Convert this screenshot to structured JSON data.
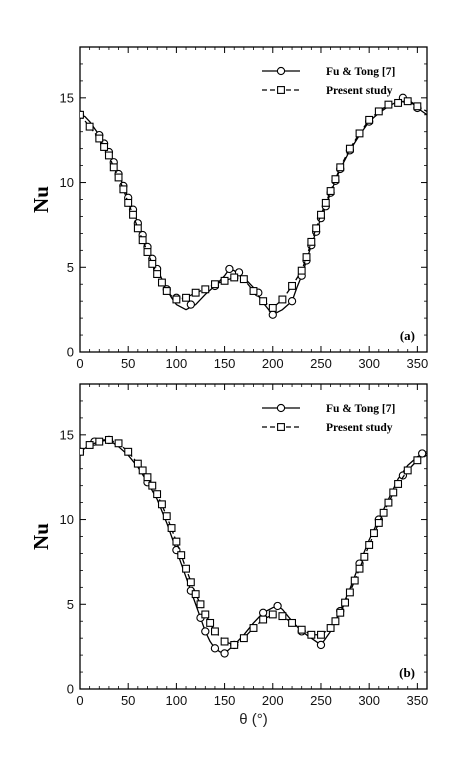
{
  "chart_data": [
    {
      "type": "line",
      "panel_label": "(a)",
      "xlabel": "",
      "ylabel": "Nu",
      "xlim": [
        0,
        360
      ],
      "ylim": [
        0,
        18
      ],
      "xticks": [
        0,
        50,
        100,
        150,
        200,
        250,
        300,
        350
      ],
      "yticks": [
        0,
        5,
        10,
        15
      ],
      "grid": false,
      "legend_position": "top-right",
      "series": [
        {
          "name": "Fu & Tong [7]",
          "style": "solid",
          "marker": "circle",
          "x": [
            0,
            5,
            10,
            15,
            20,
            25,
            30,
            35,
            40,
            45,
            50,
            55,
            60,
            65,
            70,
            75,
            80,
            85,
            90,
            95,
            100,
            110,
            120,
            130,
            140,
            150,
            155,
            160,
            170,
            180,
            190,
            200,
            210,
            220,
            225,
            230,
            235,
            240,
            245,
            250,
            255,
            260,
            265,
            270,
            280,
            290,
            300,
            310,
            320,
            330,
            335,
            340,
            345,
            350,
            355,
            360
          ],
          "y": [
            14.0,
            13.9,
            13.6,
            13.2,
            12.8,
            12.3,
            11.8,
            11.2,
            10.5,
            9.8,
            9.1,
            8.4,
            7.6,
            6.9,
            6.2,
            5.5,
            4.9,
            4.3,
            3.7,
            3.2,
            2.8,
            2.5,
            2.8,
            3.4,
            3.9,
            4.5,
            4.9,
            4.8,
            4.4,
            3.8,
            2.9,
            2.2,
            2.5,
            3.0,
            3.8,
            4.5,
            5.4,
            6.3,
            7.1,
            7.9,
            8.6,
            9.4,
            10.1,
            10.8,
            11.9,
            12.8,
            13.6,
            14.1,
            14.5,
            14.8,
            15.0,
            14.9,
            14.7,
            14.4,
            14.2,
            14.0
          ],
          "marker_x": [
            0,
            20,
            25,
            30,
            35,
            40,
            45,
            50,
            55,
            60,
            65,
            70,
            75,
            80,
            90,
            100,
            115,
            140,
            155,
            165,
            185,
            200,
            220,
            230,
            235,
            240,
            245,
            250,
            255,
            260,
            265,
            270,
            280,
            300,
            335,
            350
          ],
          "marker_y": [
            14.0,
            12.8,
            12.3,
            11.8,
            11.2,
            10.5,
            9.8,
            9.1,
            8.4,
            7.6,
            6.9,
            6.2,
            5.5,
            4.9,
            3.7,
            3.2,
            2.8,
            3.9,
            4.9,
            4.7,
            3.5,
            2.2,
            3.0,
            4.5,
            5.4,
            6.3,
            7.1,
            7.9,
            8.6,
            9.4,
            10.1,
            10.8,
            11.9,
            13.6,
            15.0,
            14.4
          ]
        },
        {
          "name": "Present study",
          "style": "dashed",
          "marker": "square",
          "x": [
            0,
            10,
            20,
            25,
            30,
            35,
            40,
            45,
            50,
            55,
            60,
            65,
            70,
            75,
            80,
            85,
            90,
            95,
            100,
            110,
            120,
            130,
            140,
            150,
            160,
            170,
            180,
            190,
            200,
            210,
            220,
            230,
            235,
            240,
            245,
            250,
            255,
            260,
            265,
            270,
            280,
            290,
            300,
            310,
            320,
            330,
            340,
            350,
            360
          ],
          "y": [
            14.0,
            13.3,
            12.6,
            12.1,
            11.6,
            10.9,
            10.3,
            9.6,
            8.8,
            8.1,
            7.3,
            6.6,
            5.9,
            5.2,
            4.6,
            4.1,
            3.6,
            3.3,
            3.1,
            3.2,
            3.5,
            3.7,
            4.0,
            4.2,
            4.4,
            4.3,
            3.6,
            3.0,
            2.6,
            3.1,
            3.9,
            4.8,
            5.6,
            6.5,
            7.3,
            8.1,
            8.8,
            9.5,
            10.2,
            10.9,
            12.0,
            12.9,
            13.7,
            14.2,
            14.6,
            14.7,
            14.8,
            14.5,
            14.2
          ],
          "marker_x": [
            0,
            10,
            20,
            25,
            30,
            35,
            40,
            45,
            50,
            55,
            60,
            65,
            70,
            75,
            80,
            85,
            90,
            100,
            110,
            120,
            130,
            140,
            150,
            160,
            170,
            180,
            190,
            200,
            210,
            220,
            230,
            235,
            240,
            245,
            250,
            255,
            260,
            265,
            270,
            280,
            290,
            300,
            310,
            320,
            330,
            340,
            350
          ],
          "marker_y": [
            14.0,
            13.3,
            12.6,
            12.1,
            11.6,
            10.9,
            10.3,
            9.6,
            8.8,
            8.1,
            7.3,
            6.6,
            5.9,
            5.2,
            4.6,
            4.1,
            3.6,
            3.1,
            3.2,
            3.5,
            3.7,
            4.0,
            4.2,
            4.4,
            4.3,
            3.6,
            3.0,
            2.6,
            3.1,
            3.9,
            4.8,
            5.6,
            6.5,
            7.3,
            8.1,
            8.8,
            9.5,
            10.2,
            10.9,
            12.0,
            12.9,
            13.7,
            14.2,
            14.6,
            14.7,
            14.8,
            14.5
          ]
        }
      ]
    },
    {
      "type": "line",
      "panel_label": "(b)",
      "xlabel": "θ (°)",
      "ylabel": "Nu",
      "xlim": [
        0,
        360
      ],
      "ylim": [
        0,
        18
      ],
      "xticks": [
        0,
        50,
        100,
        150,
        200,
        250,
        300,
        350
      ],
      "yticks": [
        0,
        5,
        10,
        15
      ],
      "grid": false,
      "legend_position": "top-right",
      "series": [
        {
          "name": "Fu & Tong [7]",
          "style": "solid",
          "marker": "circle",
          "x": [
            0,
            10,
            20,
            30,
            40,
            50,
            60,
            70,
            80,
            90,
            100,
            110,
            115,
            120,
            125,
            130,
            135,
            140,
            145,
            150,
            160,
            170,
            180,
            190,
            200,
            205,
            210,
            220,
            230,
            240,
            250,
            260,
            270,
            280,
            290,
            300,
            310,
            320,
            330,
            340,
            350,
            355,
            360
          ],
          "y": [
            14.0,
            14.4,
            14.7,
            14.7,
            14.3,
            13.8,
            13.1,
            12.2,
            11.2,
            9.8,
            8.2,
            6.6,
            5.8,
            5.0,
            4.2,
            3.4,
            2.8,
            2.4,
            2.2,
            2.1,
            2.6,
            3.2,
            3.9,
            4.5,
            4.8,
            4.9,
            4.7,
            4.0,
            3.4,
            3.0,
            2.6,
            3.4,
            4.6,
            5.9,
            7.4,
            8.8,
            10.0,
            11.2,
            12.4,
            13.2,
            13.7,
            13.9,
            13.9
          ],
          "marker_x": [
            0,
            15,
            30,
            70,
            100,
            115,
            125,
            130,
            140,
            150,
            160,
            190,
            205,
            230,
            250,
            270,
            290,
            310,
            335,
            355
          ],
          "marker_y": [
            14.0,
            14.6,
            14.7,
            12.2,
            8.2,
            5.8,
            4.2,
            3.4,
            2.4,
            2.1,
            2.6,
            4.5,
            4.9,
            3.4,
            2.6,
            4.6,
            7.4,
            10.0,
            12.6,
            13.9
          ]
        },
        {
          "name": "Present study",
          "style": "dashed",
          "marker": "square",
          "x": [
            0,
            10,
            20,
            30,
            40,
            50,
            60,
            70,
            80,
            90,
            100,
            110,
            120,
            130,
            140,
            150,
            160,
            170,
            180,
            190,
            200,
            210,
            220,
            230,
            240,
            250,
            260,
            270,
            280,
            290,
            300,
            310,
            320,
            330,
            340,
            350,
            360
          ],
          "y": [
            14.0,
            14.4,
            14.6,
            14.7,
            14.5,
            14.0,
            13.3,
            12.5,
            11.5,
            10.2,
            8.7,
            7.1,
            5.6,
            4.4,
            3.4,
            2.8,
            2.6,
            3.0,
            3.6,
            4.1,
            4.4,
            4.3,
            3.9,
            3.5,
            3.2,
            3.2,
            3.6,
            4.5,
            5.7,
            7.1,
            8.5,
            9.8,
            11.0,
            12.1,
            12.9,
            13.5,
            13.8
          ],
          "marker_x": [
            0,
            10,
            20,
            30,
            40,
            50,
            60,
            65,
            70,
            75,
            80,
            85,
            90,
            95,
            100,
            105,
            110,
            115,
            120,
            125,
            130,
            135,
            140,
            150,
            160,
            170,
            180,
            190,
            200,
            210,
            220,
            230,
            240,
            250,
            260,
            265,
            270,
            275,
            280,
            285,
            290,
            295,
            300,
            305,
            310,
            315,
            320,
            325,
            330,
            340,
            350
          ],
          "marker_y": [
            14.0,
            14.4,
            14.6,
            14.7,
            14.5,
            14.0,
            13.3,
            12.9,
            12.5,
            12.0,
            11.5,
            10.9,
            10.2,
            9.5,
            8.7,
            7.9,
            7.1,
            6.3,
            5.6,
            5.0,
            4.4,
            3.9,
            3.4,
            2.8,
            2.6,
            3.0,
            3.6,
            4.1,
            4.4,
            4.3,
            3.9,
            3.5,
            3.2,
            3.2,
            3.6,
            4.0,
            4.5,
            5.1,
            5.7,
            6.4,
            7.1,
            7.8,
            8.5,
            9.2,
            9.8,
            10.4,
            11.0,
            11.6,
            12.1,
            12.9,
            13.5
          ]
        }
      ]
    }
  ]
}
